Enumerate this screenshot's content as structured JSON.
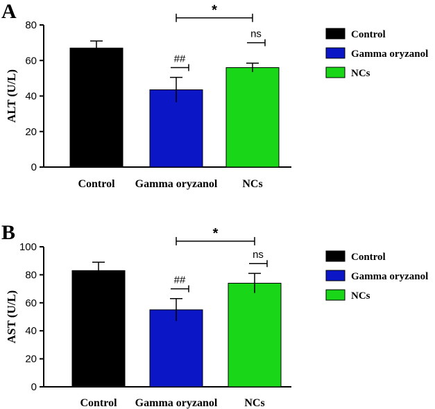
{
  "colors": {
    "control": "#000000",
    "gamma_oryzanol": "#0b16c6",
    "ncs": "#19d619",
    "axis": "#000000"
  },
  "chart_data": [
    {
      "type": "bar",
      "panel": "A",
      "categories": [
        "Control",
        "Gamma oryzanol",
        "NCs"
      ],
      "values": [
        67,
        43.5,
        56
      ],
      "errors": [
        4,
        7,
        2.5
      ],
      "colors": [
        "#000000",
        "#0b16c6",
        "#19d619"
      ],
      "ylabel": "ALT (U/L)",
      "ylim": [
        0,
        80
      ],
      "yticks": [
        0,
        20,
        40,
        60,
        80
      ],
      "legend": [
        "Control",
        "Gamma oryzanol",
        "NCs"
      ],
      "legend_position": "right",
      "annotations": [
        {
          "text": "##",
          "category": "Gamma oryzanol",
          "y": 56
        },
        {
          "text": "ns",
          "category": "NCs",
          "y": 70
        }
      ],
      "comparison": {
        "text": "*",
        "from": "Gamma oryzanol",
        "to": "NCs",
        "y": 84
      }
    },
    {
      "type": "bar",
      "panel": "B",
      "categories": [
        "Control",
        "Gamma oryzanol",
        "NCs"
      ],
      "values": [
        83,
        55,
        74
      ],
      "errors": [
        6,
        8,
        7
      ],
      "colors": [
        "#000000",
        "#0b16c6",
        "#19d619"
      ],
      "ylabel": "AST (U/L)",
      "ylim": [
        0,
        100
      ],
      "yticks": [
        0,
        20,
        40,
        60,
        80,
        100
      ],
      "legend": [
        "Control",
        "Gamma oryzanol",
        "NCs"
      ],
      "legend_position": "right",
      "annotations": [
        {
          "text": "##",
          "category": "Gamma oryzanol",
          "y": 70
        },
        {
          "text": "ns",
          "category": "NCs",
          "y": 88
        }
      ],
      "comparison": {
        "text": "*",
        "from": "Gamma oryzanol",
        "to": "NCs",
        "y": 104
      }
    }
  ]
}
